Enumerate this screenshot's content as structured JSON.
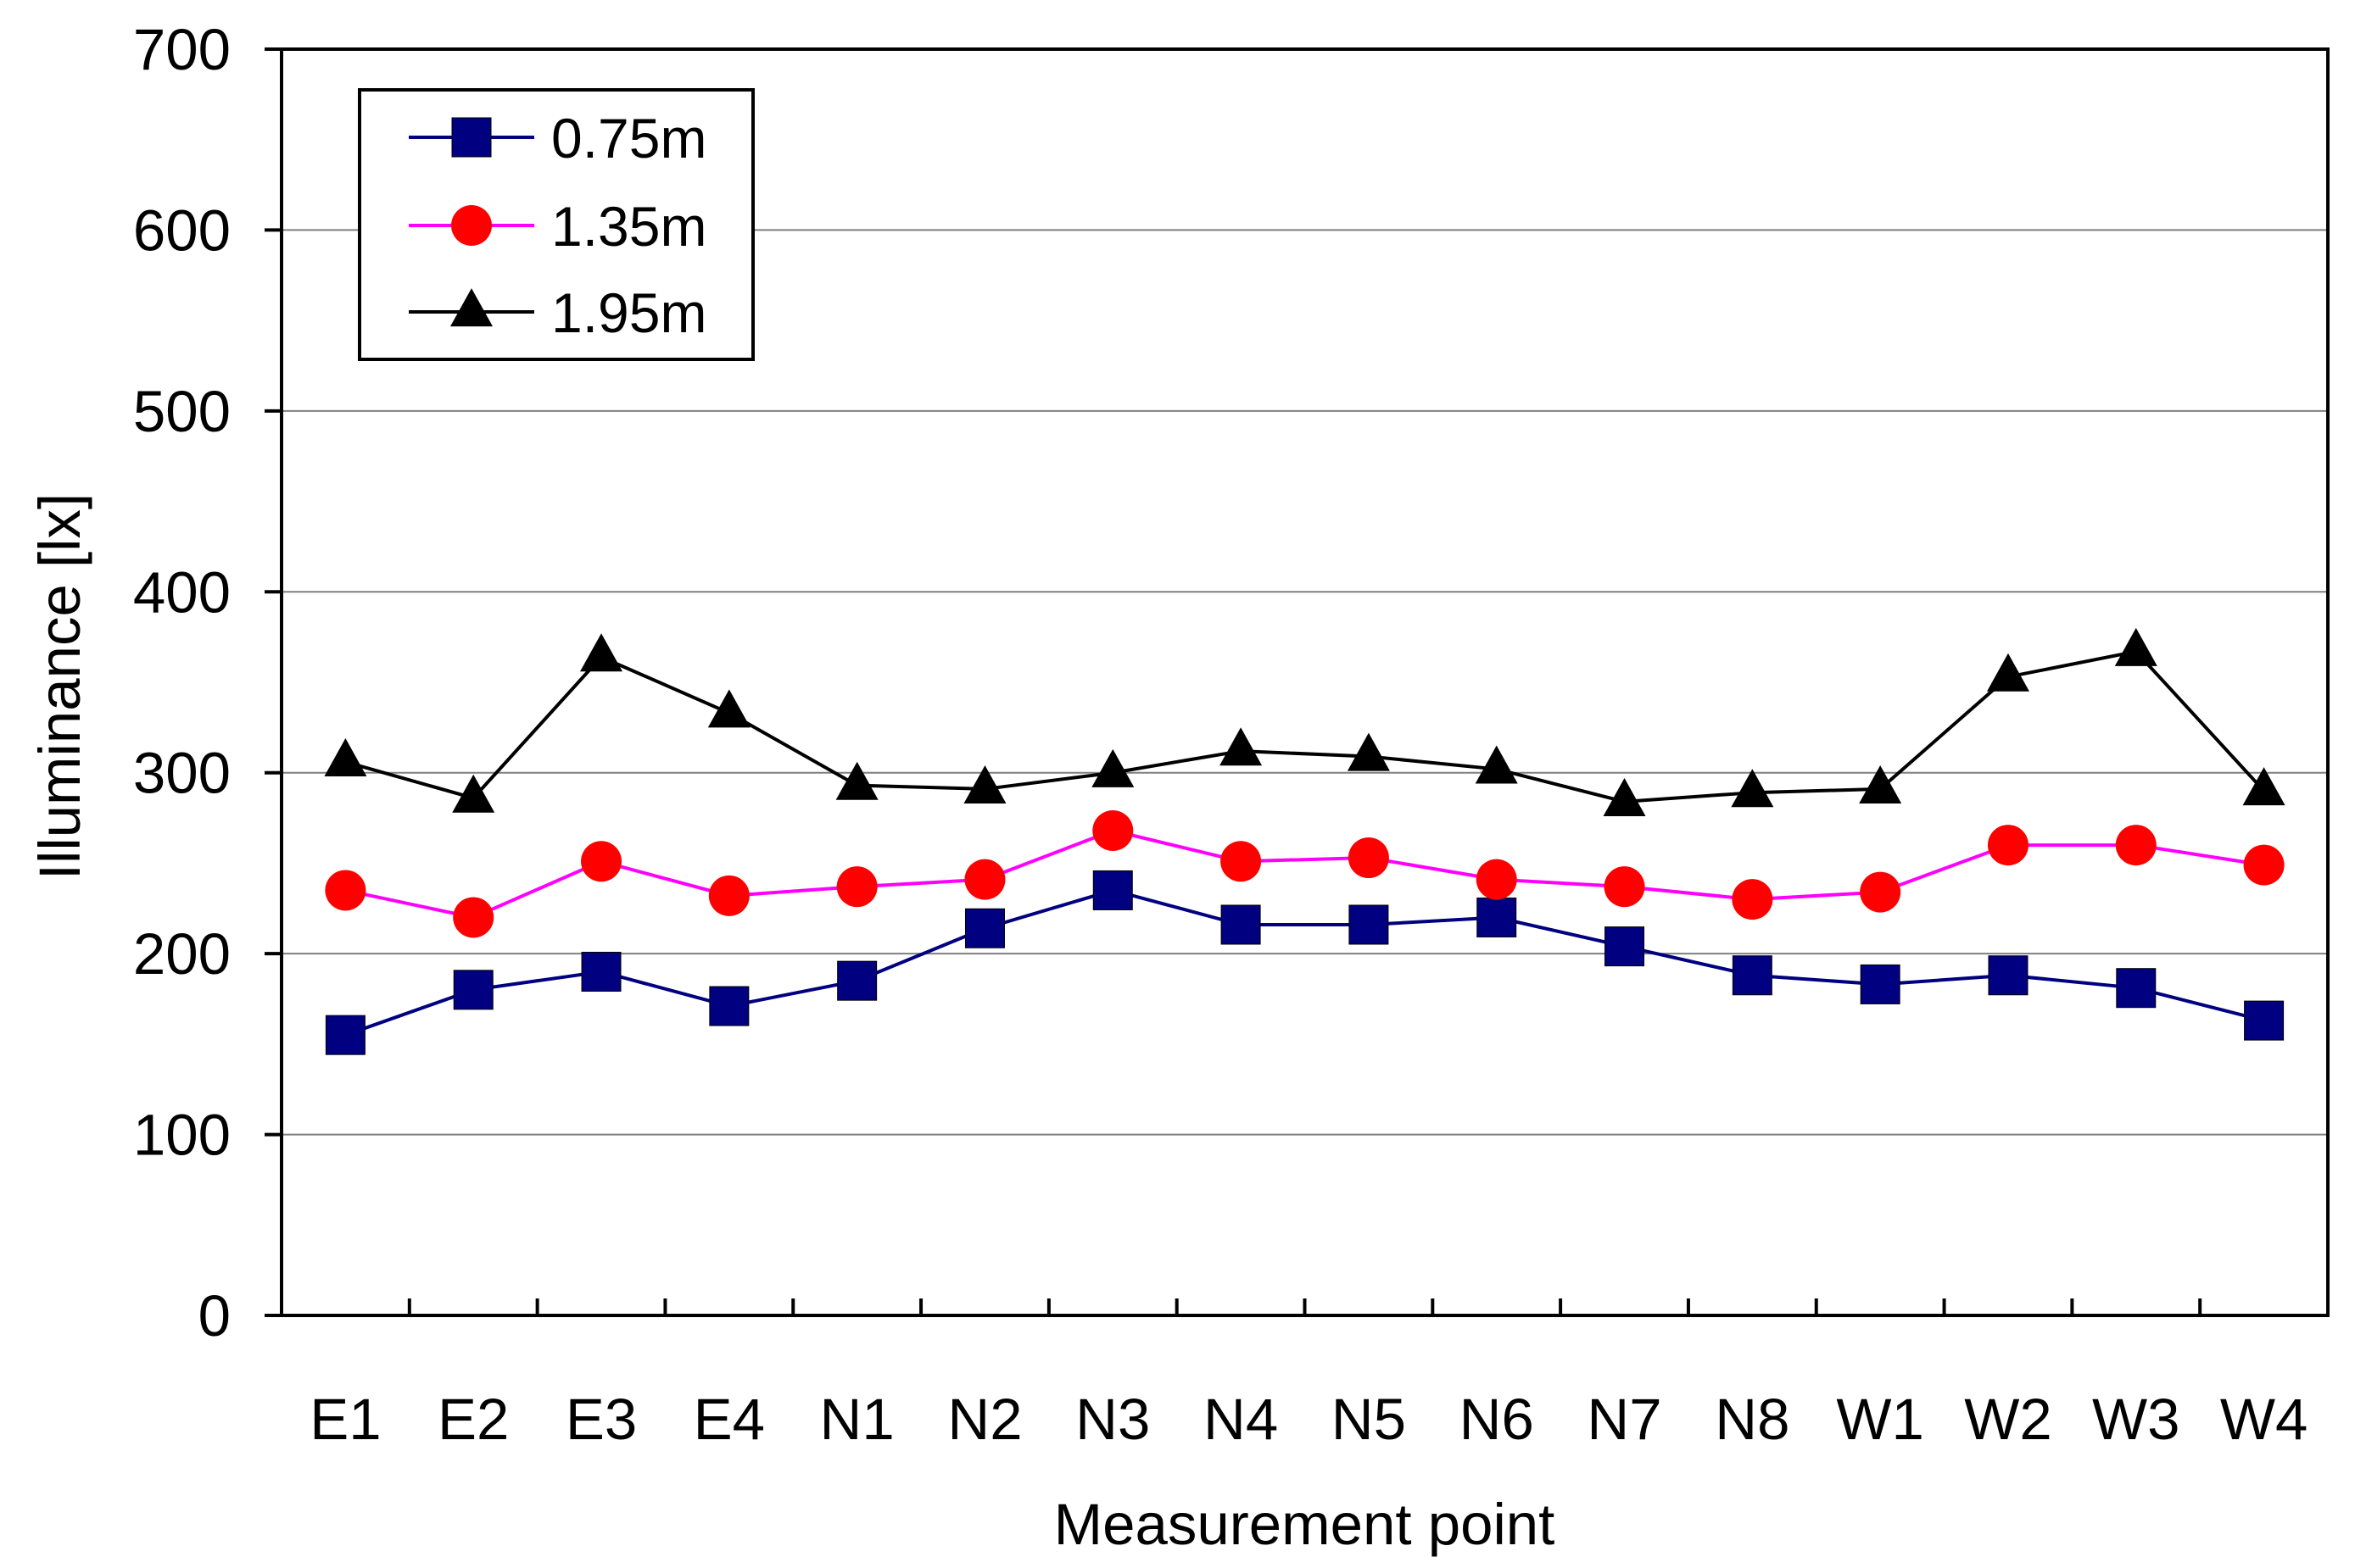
{
  "chart_data": {
    "type": "line",
    "title": "",
    "xlabel": "Measurement point",
    "ylabel": "Illuminance [lx]",
    "ylim": [
      0,
      700
    ],
    "yticks": [
      0,
      100,
      200,
      300,
      400,
      500,
      600,
      700
    ],
    "grid": "horizontal",
    "legend_position": "top-left",
    "categories": [
      "E1",
      "E2",
      "E3",
      "E4",
      "N1",
      "N2",
      "N3",
      "N4",
      "N5",
      "N6",
      "N7",
      "N8",
      "W1",
      "W2",
      "W3",
      "W4"
    ],
    "series": [
      {
        "name": "0.75m",
        "marker": "square",
        "line_color": "#000080",
        "marker_fill": "#000080",
        "values": [
          155,
          180,
          190,
          171,
          185,
          214,
          235,
          216,
          216,
          220,
          204,
          188,
          183,
          188,
          181,
          163
        ]
      },
      {
        "name": "1.35m",
        "marker": "circle",
        "line_color": "#ff00ff",
        "marker_fill": "#ff0000",
        "values": [
          235,
          220,
          251,
          232,
          237,
          241,
          268,
          251,
          253,
          241,
          237,
          230,
          234,
          260,
          260,
          249
        ]
      },
      {
        "name": "1.95m",
        "marker": "triangle",
        "line_color": "#000000",
        "marker_fill": "#000000",
        "values": [
          306,
          286,
          364,
          333,
          293,
          291,
          300,
          312,
          309,
          302,
          284,
          289,
          291,
          353,
          367,
          290
        ]
      }
    ]
  }
}
